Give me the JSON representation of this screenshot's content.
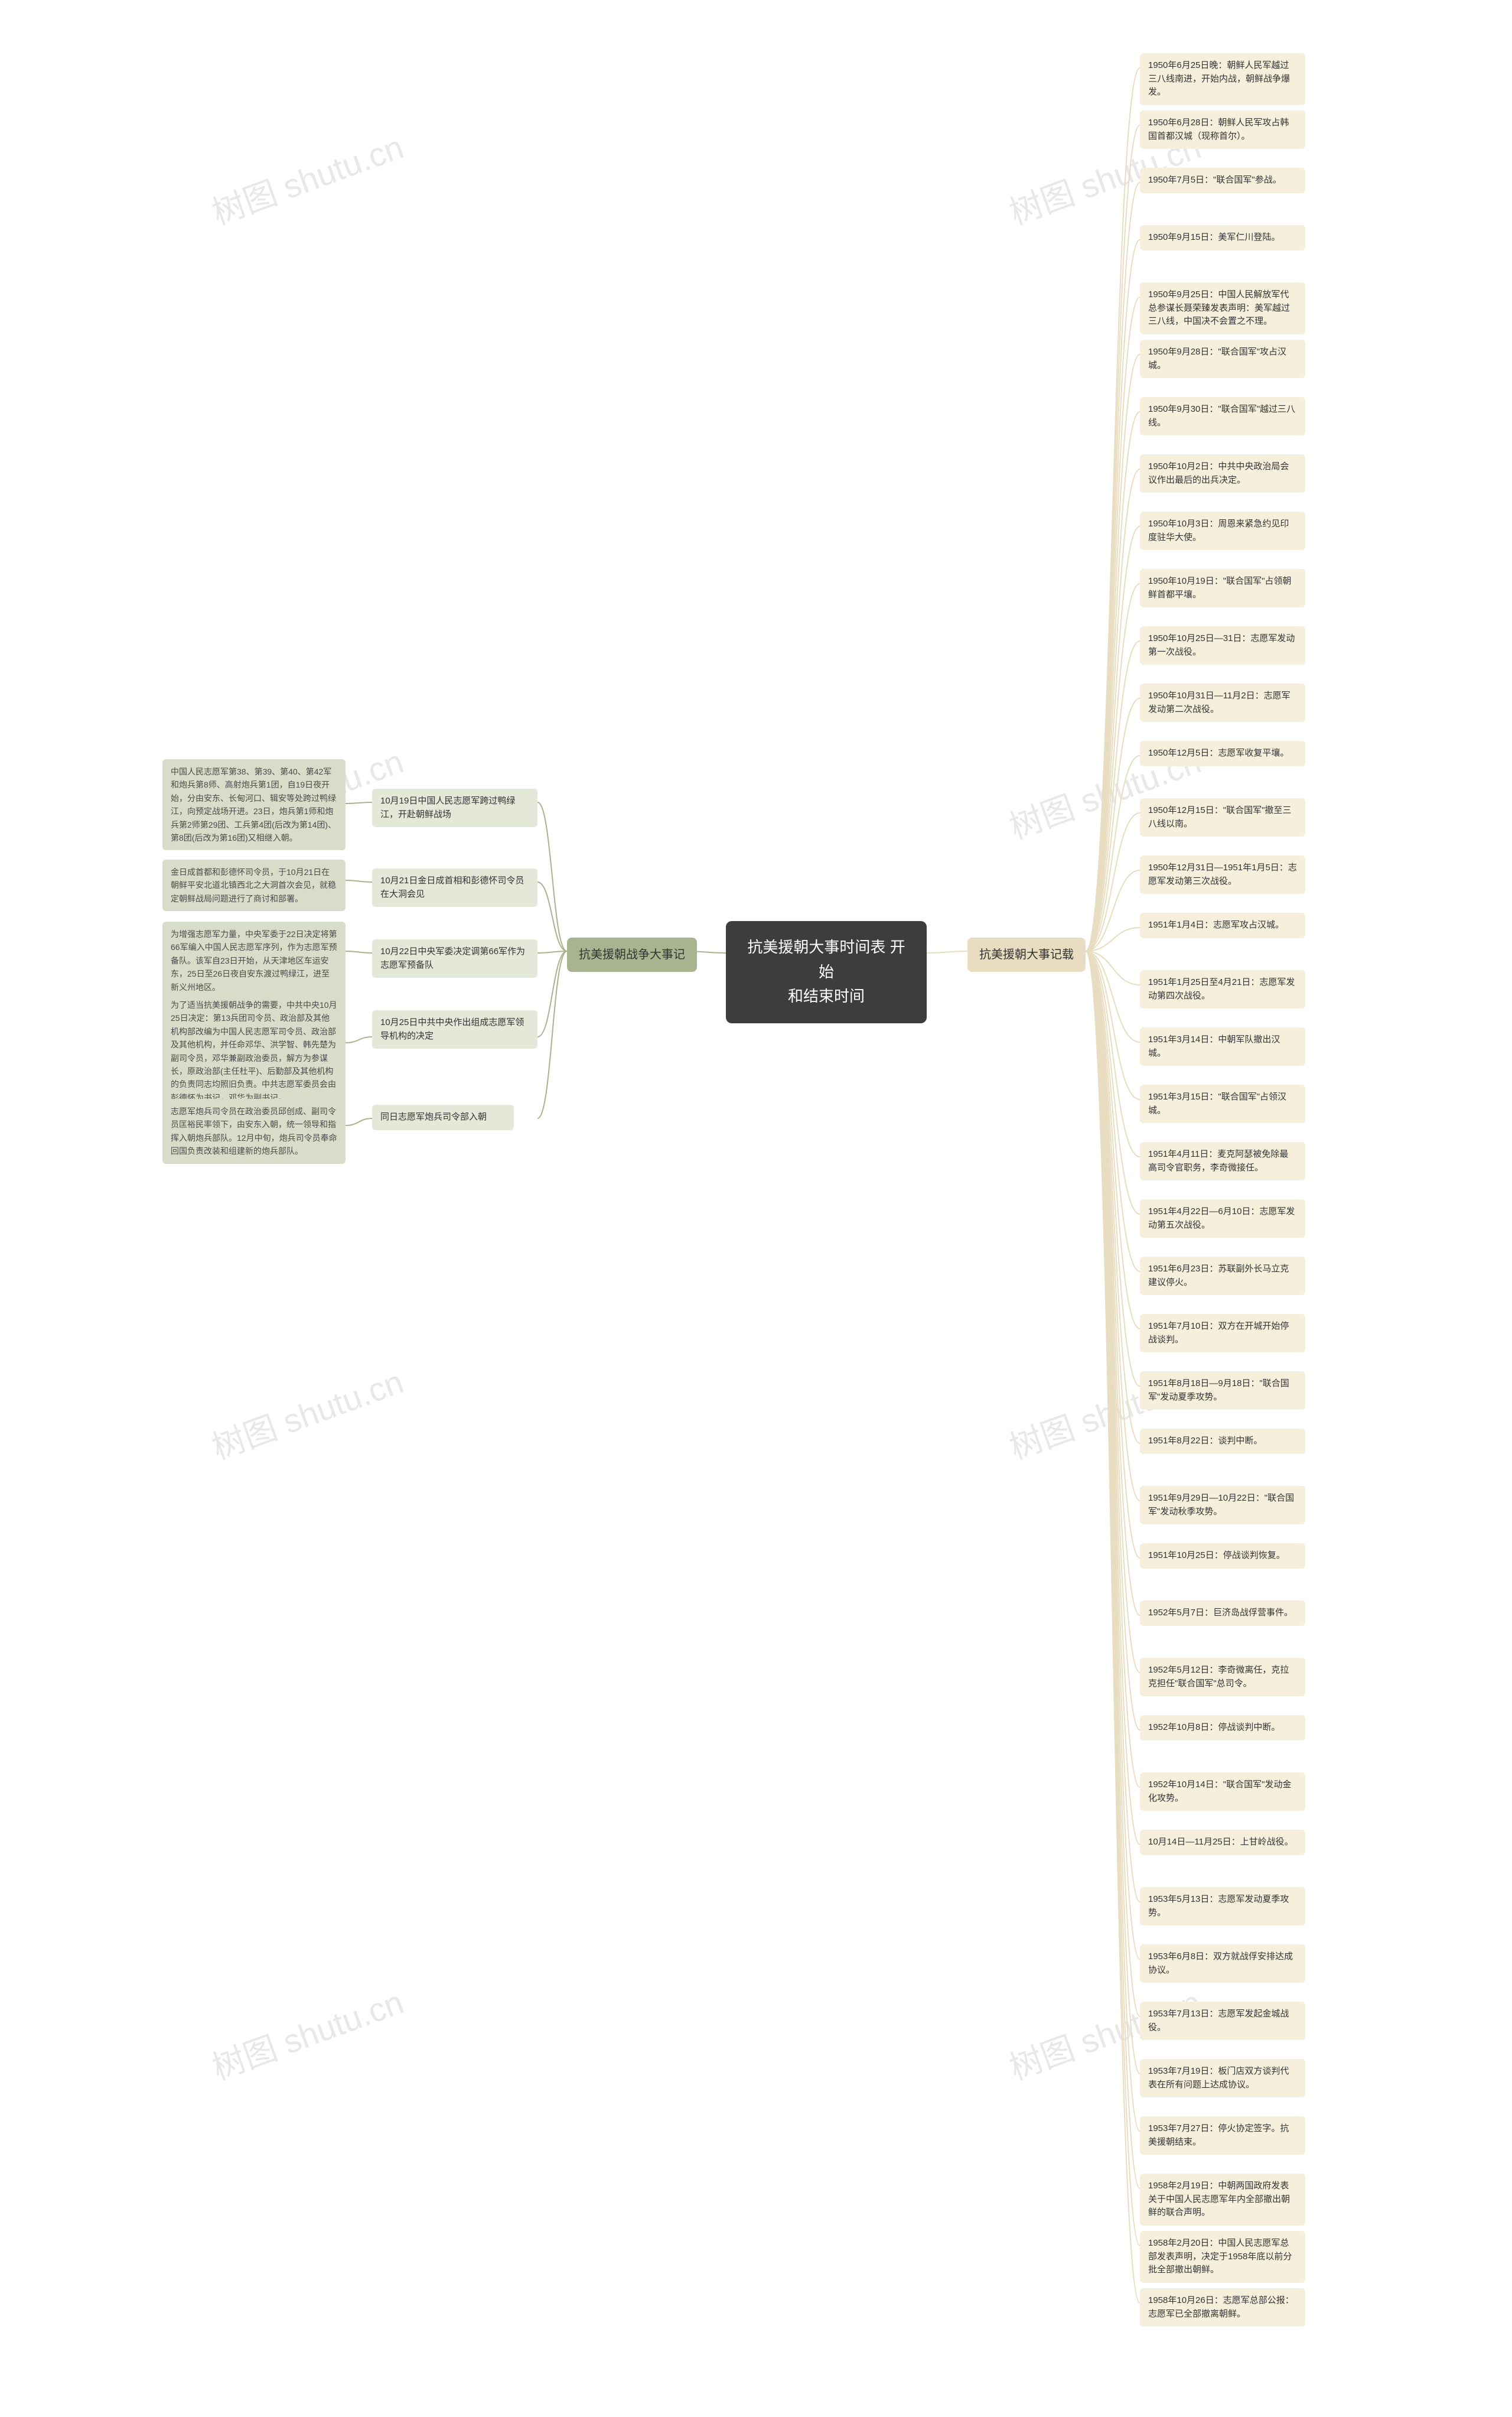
{
  "colors": {
    "root_bg": "#3d3d3d",
    "root_fg": "#ffffff",
    "branch_left_bg": "#a7b48f",
    "branch_right_bg": "#e8ddc0",
    "leaf_left_bg": "#e3e8d8",
    "leaf_left_detail_bg": "#d7ddc8",
    "leaf_right_bg": "#f5efdc",
    "connector_left": "#a7b48f",
    "connector_right": "#e8ddc0",
    "watermark": "#e8e8e8",
    "page_bg": "#ffffff"
  },
  "watermark_text": "树图 shutu.cn",
  "root": {
    "line1": "抗美援朝大事时间表 开始",
    "line2": "和结束时间"
  },
  "left_branch": {
    "label": "抗美援朝战争大事记"
  },
  "right_branch": {
    "label": "抗美援朝大事记载"
  },
  "left_items": [
    {
      "summary": "10月19日中国人民志愿军跨过鸭绿江，开赴朝鲜战场",
      "detail": "中国人民志愿军第38、第39、第40、第42军和炮兵第8师、高射炮兵第1团，自19日夜开始，分由安东、长甸河口、辑安等处跨过鸭绿江，向预定战场开进。23日，炮兵第1师和炮兵第2师第29团、工兵第4团(后改为第14团)、第8团(后改为第16团)又相继入朝。"
    },
    {
      "summary": "10月21日金日成首相和彭德怀司令员在大洞会见",
      "detail": "金日成首都和彭德怀司令员，于10月21日在朝鲜平安北道北镇西北之大洞首次会见，就稳定朝鲜战局问题进行了商讨和部署。"
    },
    {
      "summary": "10月22日中央军委决定调第66军作为志愿军预备队",
      "detail": "为增强志愿军力量，中央军委于22日决定将第66军编入中国人民志愿军序列，作为志愿军预备队。该军自23日开始，从天津地区车运安东，25日至26日夜自安东渡过鸭绿江，进至新义州地区。"
    },
    {
      "summary": "10月25日中共中央作出组成志愿军领导机构的决定",
      "detail": "为了适当抗美援朝战争的需要，中共中央10月25日决定：第13兵团司令员、政治部及其他机构部改编为中国人民志愿军司令员、政治部及其他机构，并任命邓华、洪学智、韩先楚为副司令员，邓华兼副政治委员，解方为参谋长，原政治部(主任杜平)、后勤部及其他机构的负责同志均照旧负责。中共志愿军委员会由彭德怀为书记，邓华为副书记。"
    },
    {
      "summary": "同日志愿军炮兵司令部入朝",
      "detail": "志愿军炮兵司令员在政治委员邱创成、副司令员匡裕民率领下，由安东入朝，统一领导和指挥入朝炮兵部队。12月中旬，炮兵司令员奉命回国负责改装和组建新的炮兵部队。"
    }
  ],
  "right_items": [
    "1950年6月25日晚：朝鲜人民军越过三八线南进，开始内战，朝鲜战争爆发。",
    "1950年6月28日：朝鲜人民军攻占韩国首都汉城（现称首尔）。",
    "1950年7月5日：\"联合国军\"参战。",
    "1950年9月15日：美军仁川登陆。",
    "1950年9月25日：中国人民解放军代总参谋长聂荣臻发表声明：美军越过三八线，中国决不会置之不理。",
    "1950年9月28日：\"联合国军\"攻占汉城。",
    "1950年9月30日：\"联合国军\"越过三八线。",
    "1950年10月2日：中共中央政治局会议作出最后的出兵决定。",
    "1950年10月3日：周恩来紧急约见印度驻华大使。",
    "1950年10月19日：\"联合国军\"占领朝鲜首都平壤。",
    "1950年10月25日—31日：志愿军发动第一次战役。",
    "1950年10月31日—11月2日：志愿军发动第二次战役。",
    "1950年12月5日：志愿军收复平壤。",
    "1950年12月15日：\"联合国军\"撤至三八线以南。",
    "1950年12月31日—1951年1月5日：志愿军发动第三次战役。",
    "1951年1月4日：志愿军攻占汉城。",
    "1951年1月25日至4月21日：志愿军发动第四次战役。",
    "1951年3月14日：中朝军队撤出汉城。",
    "1951年3月15日：\"联合国军\"占领汉城。",
    "1951年4月11日：麦克阿瑟被免除最高司令官职务，李奇微接任。",
    "1951年4月22日—6月10日：志愿军发动第五次战役。",
    "1951年6月23日：苏联副外长马立克建议停火。",
    "1951年7月10日：双方在开城开始停战谈判。",
    "1951年8月18日—9月18日：\"联合国军\"发动夏季攻势。",
    "1951年8月22日：谈判中断。",
    "1951年9月29日—10月22日：\"联合国军\"发动秋季攻势。",
    "1951年10月25日：停战谈判恢复。",
    "1952年5月7日：巨济岛战俘营事件。",
    "1952年5月12日：李奇微离任，克拉克担任\"联合国军\"总司令。",
    "1952年10月8日：停战谈判中断。",
    "1952年10月14日：\"联合国军\"发动金化攻势。",
    "10月14日—11月25日：上甘岭战役。",
    "1953年5月13日：志愿军发动夏季攻势。",
    "1953年6月8日：双方就战俘安排达成协议。",
    "1953年7月13日：志愿军发起金城战役。",
    "1953年7月19日：板门店双方谈判代表在所有问题上达成协议。",
    "1953年7月27日：停火协定签字。抗美援朝结束。",
    "1958年2月19日：中朝两国政府发表关于中国人民志愿军年内全部撤出朝鲜的联合声明。",
    "1958年2月20日：中国人民志愿军总部发表声明，决定于1958年底以前分批全部撤出朝鲜。",
    "1958年10月26日：志愿军总部公报：志愿军已全部撤离朝鲜。"
  ]
}
